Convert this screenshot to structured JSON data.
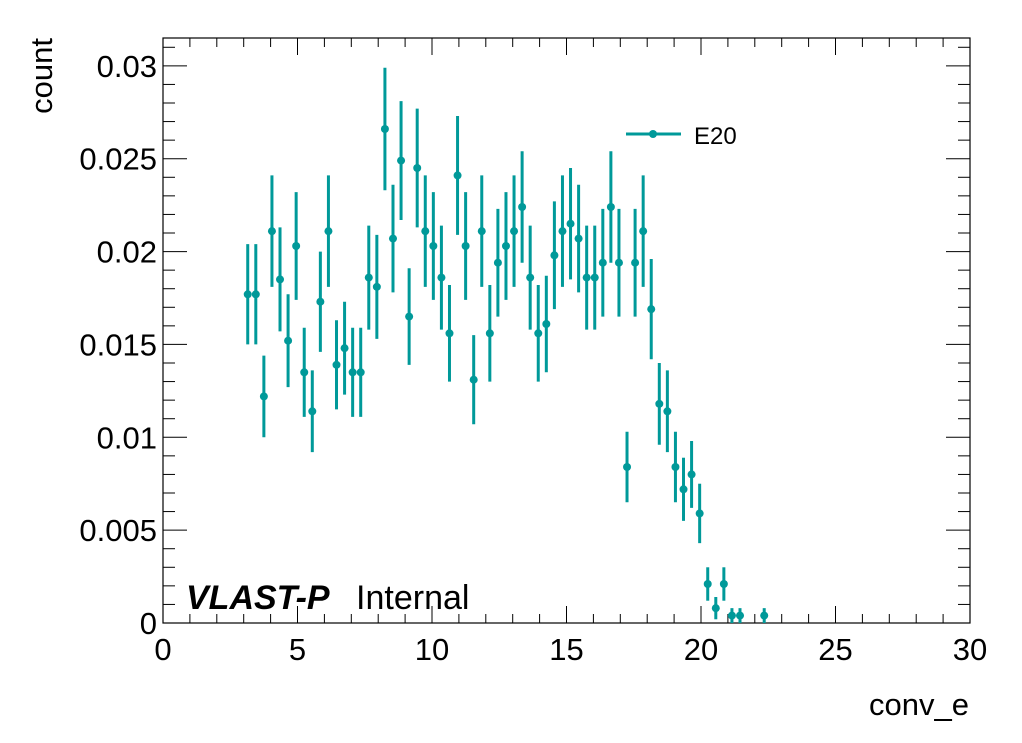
{
  "chart_data": {
    "type": "scatter",
    "xlabel": "conv_e",
    "ylabel": "count",
    "xlim": [
      0,
      30
    ],
    "ylim": [
      0,
      0.0315
    ],
    "x_ticks": [
      0,
      5,
      10,
      15,
      20,
      25,
      30
    ],
    "x_tick_labels": [
      "0",
      "5",
      "10",
      "15",
      "20",
      "25",
      "30"
    ],
    "y_ticks": [
      0,
      0.005,
      0.01,
      0.015,
      0.02,
      0.025,
      0.03
    ],
    "y_tick_labels": [
      "0",
      "0.005",
      "0.01",
      "0.015",
      "0.02",
      "0.025",
      "0.03"
    ],
    "grid": false,
    "legend_position": "top-right",
    "annotation_bold": "VLAST-P",
    "annotation_normal": "Internal",
    "color": "#009999",
    "series": [
      {
        "name": "E20",
        "x": [
          3.15,
          3.45,
          3.75,
          4.05,
          4.35,
          4.65,
          4.95,
          5.25,
          5.55,
          5.85,
          6.15,
          6.45,
          6.75,
          7.05,
          7.35,
          7.65,
          7.95,
          8.25,
          8.55,
          8.85,
          9.15,
          9.45,
          9.75,
          10.05,
          10.35,
          10.65,
          10.95,
          11.25,
          11.55,
          11.85,
          12.15,
          12.45,
          12.75,
          13.05,
          13.35,
          13.65,
          13.95,
          14.25,
          14.55,
          14.85,
          15.15,
          15.45,
          15.75,
          16.05,
          16.35,
          16.65,
          16.95,
          17.25,
          17.55,
          17.85,
          18.15,
          18.45,
          18.75,
          19.05,
          19.35,
          19.65,
          19.95,
          20.25,
          20.55,
          20.85,
          21.15,
          21.45,
          22.35
        ],
        "y": [
          0.0177,
          0.0177,
          0.0122,
          0.0211,
          0.0185,
          0.0152,
          0.0203,
          0.0135,
          0.0114,
          0.0173,
          0.0211,
          0.0139,
          0.0148,
          0.0135,
          0.0135,
          0.0186,
          0.0181,
          0.0266,
          0.0207,
          0.0249,
          0.0165,
          0.0245,
          0.0211,
          0.0203,
          0.0186,
          0.0156,
          0.0241,
          0.0203,
          0.0131,
          0.0211,
          0.0156,
          0.0194,
          0.0203,
          0.0211,
          0.0224,
          0.0186,
          0.0156,
          0.0161,
          0.0198,
          0.0211,
          0.0215,
          0.0207,
          0.0186,
          0.0186,
          0.0194,
          0.0224,
          0.0194,
          0.0084,
          0.0194,
          0.0211,
          0.0169,
          0.0118,
          0.0114,
          0.0084,
          0.0072,
          0.008,
          0.0059,
          0.0021,
          0.0008,
          0.0021,
          0.0004,
          0.0004,
          0.0004
        ],
        "yerr": [
          0.0027,
          0.0027,
          0.0022,
          0.003,
          0.0028,
          0.0025,
          0.0029,
          0.0024,
          0.0022,
          0.0027,
          0.003,
          0.0024,
          0.0025,
          0.0024,
          0.0024,
          0.0028,
          0.0028,
          0.0033,
          0.0029,
          0.0032,
          0.0026,
          0.0032,
          0.003,
          0.0029,
          0.0028,
          0.0026,
          0.0032,
          0.0029,
          0.0024,
          0.003,
          0.0026,
          0.0029,
          0.0029,
          0.003,
          0.003,
          0.0028,
          0.0026,
          0.0026,
          0.0029,
          0.003,
          0.003,
          0.0029,
          0.0028,
          0.0028,
          0.0029,
          0.003,
          0.0029,
          0.0019,
          0.0029,
          0.003,
          0.0027,
          0.0022,
          0.0022,
          0.0019,
          0.0017,
          0.0018,
          0.0016,
          0.0009,
          0.0006,
          0.0009,
          0.0004,
          0.0004,
          0.0004
        ]
      }
    ]
  }
}
